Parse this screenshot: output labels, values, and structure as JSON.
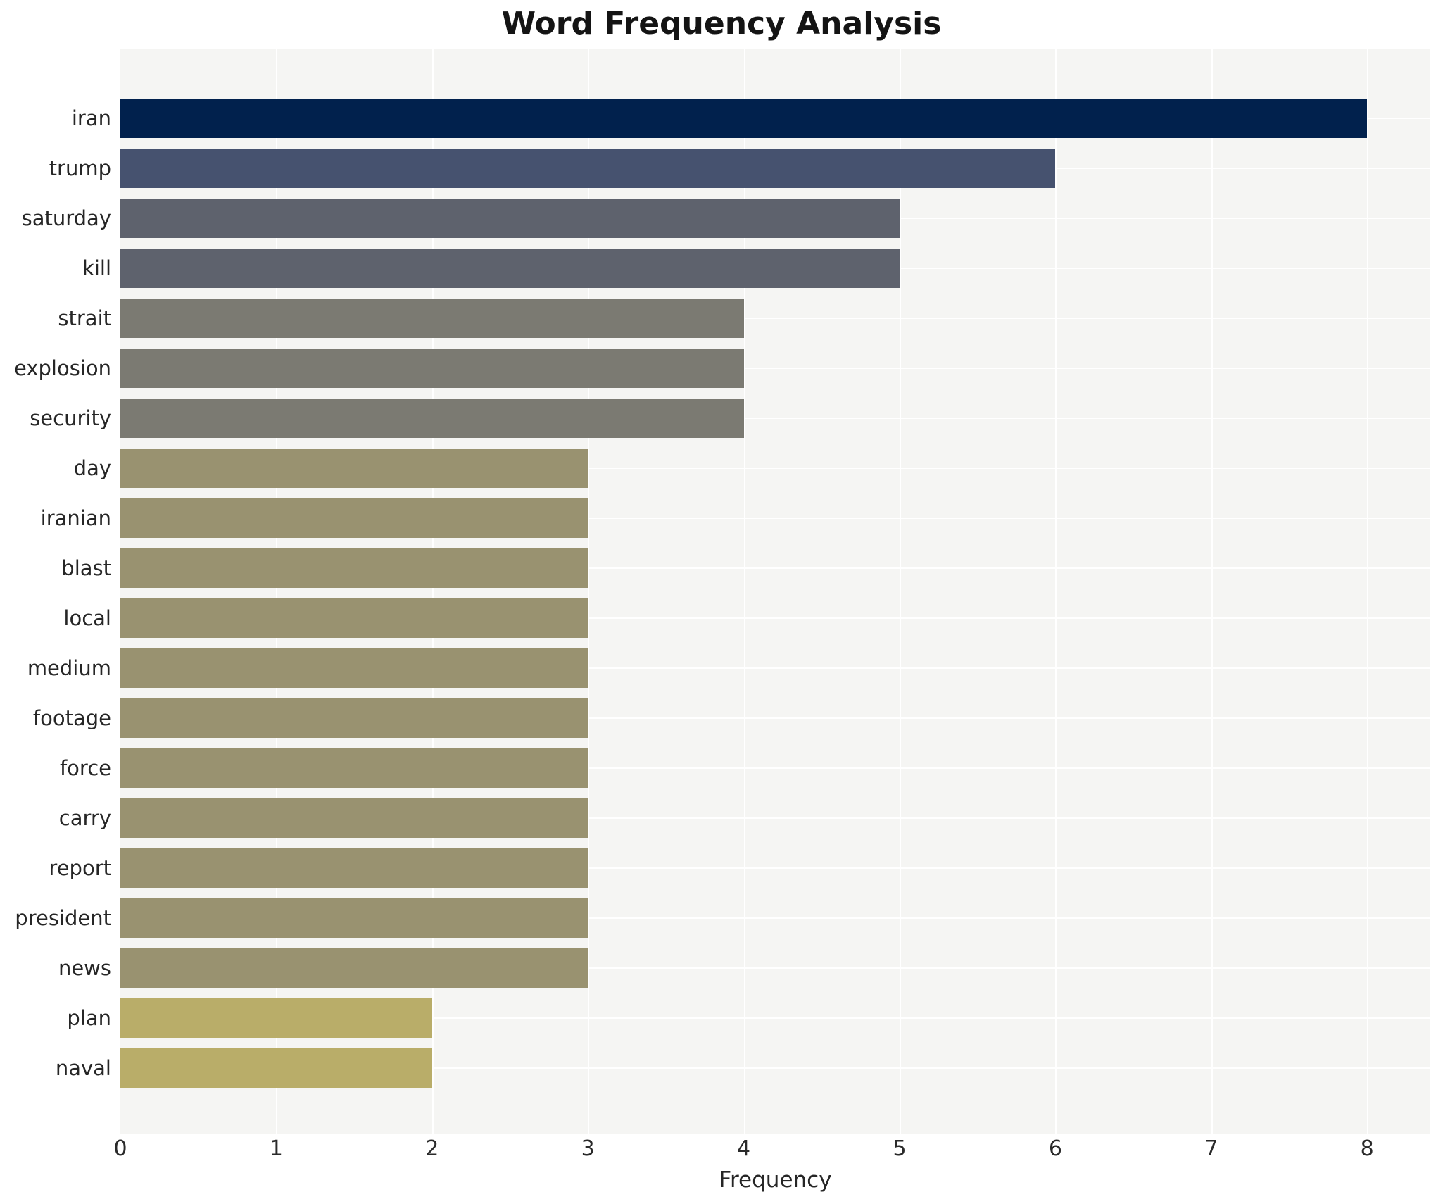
{
  "chart_data": {
    "type": "bar",
    "orientation": "horizontal",
    "title": "Word Frequency Analysis",
    "xlabel": "Frequency",
    "ylabel": "",
    "categories": [
      "iran",
      "trump",
      "saturday",
      "kill",
      "strait",
      "explosion",
      "security",
      "day",
      "iranian",
      "blast",
      "local",
      "medium",
      "footage",
      "force",
      "carry",
      "report",
      "president",
      "news",
      "plan",
      "naval"
    ],
    "values": [
      8,
      6,
      5,
      5,
      4,
      4,
      4,
      3,
      3,
      3,
      3,
      3,
      3,
      3,
      3,
      3,
      3,
      3,
      2,
      2
    ],
    "bar_colors": [
      "#01214d",
      "#46526f",
      "#5e626d",
      "#5e626d",
      "#7b7a72",
      "#7b7a72",
      "#7b7a72",
      "#999270",
      "#999270",
      "#999270",
      "#999270",
      "#999270",
      "#999270",
      "#999270",
      "#999270",
      "#999270",
      "#999270",
      "#999270",
      "#b9ad69",
      "#b9ad69"
    ],
    "x_ticks": [
      0,
      1,
      2,
      3,
      4,
      5,
      6,
      7,
      8
    ],
    "xlim": [
      0,
      8.4
    ],
    "grid": true,
    "legend": "none",
    "plot_background": "#f5f5f3",
    "grid_color": "#ffffff",
    "text_color": "#262626",
    "title_color": "#141414"
  }
}
